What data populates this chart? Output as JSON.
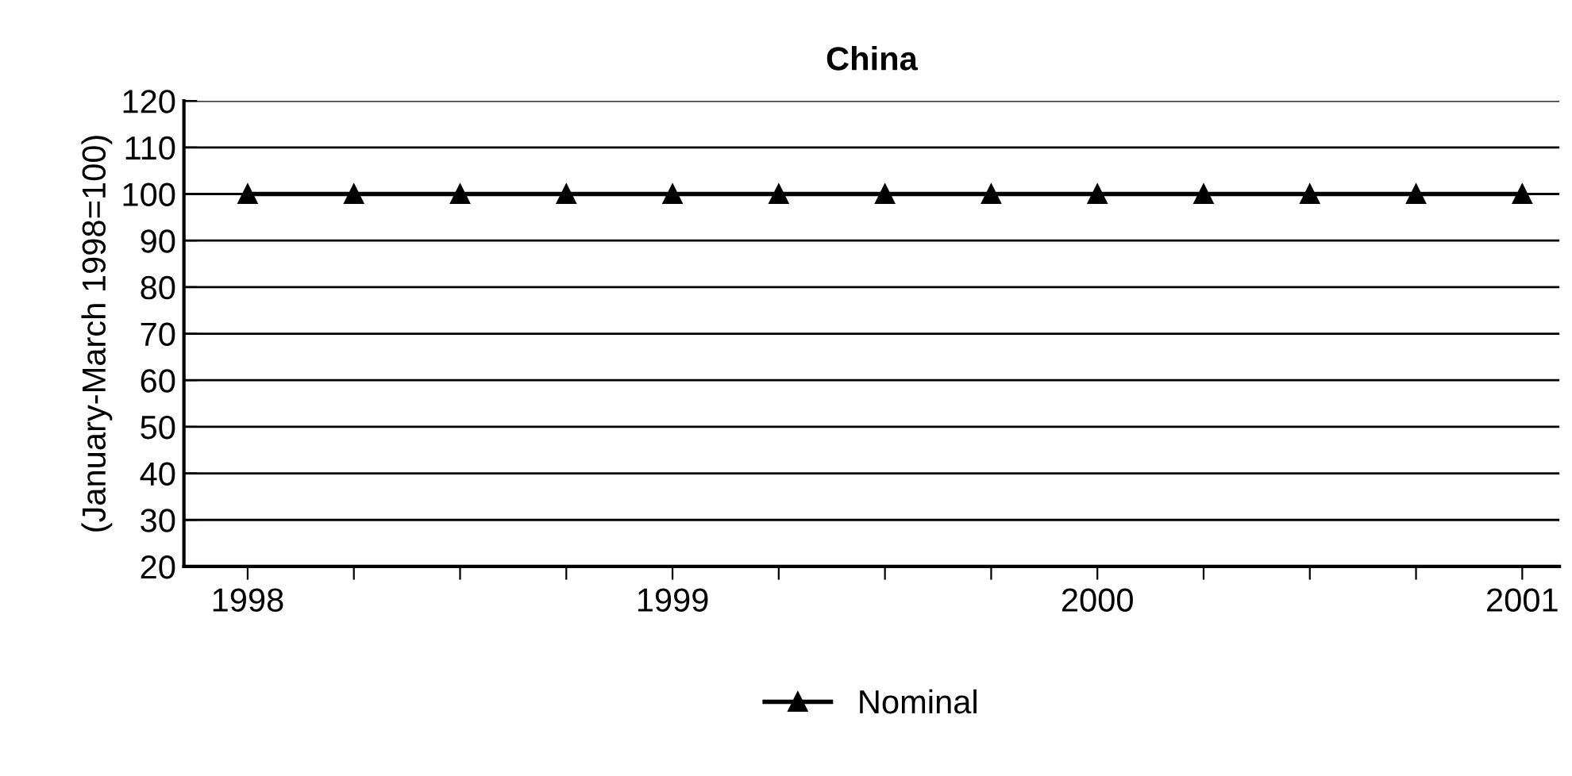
{
  "chart_data": {
    "type": "line",
    "title": "China",
    "ylabel": "(January-March 1998=100)",
    "categories": [
      "1998",
      null,
      null,
      null,
      "1999",
      null,
      null,
      null,
      "2000",
      null,
      null,
      null,
      "2001"
    ],
    "series": [
      {
        "name": "Nominal",
        "color": "#000000",
        "values": [
          100,
          100,
          100,
          100,
          100,
          100,
          100,
          100,
          100,
          100,
          100,
          100,
          100
        ]
      }
    ],
    "ylim": [
      20,
      120
    ],
    "yticks": [
      20,
      30,
      40,
      50,
      60,
      70,
      80,
      90,
      100,
      110,
      120
    ],
    "grid": "y",
    "legend": "bottom",
    "marker": "triangle",
    "line_style": "solid"
  }
}
